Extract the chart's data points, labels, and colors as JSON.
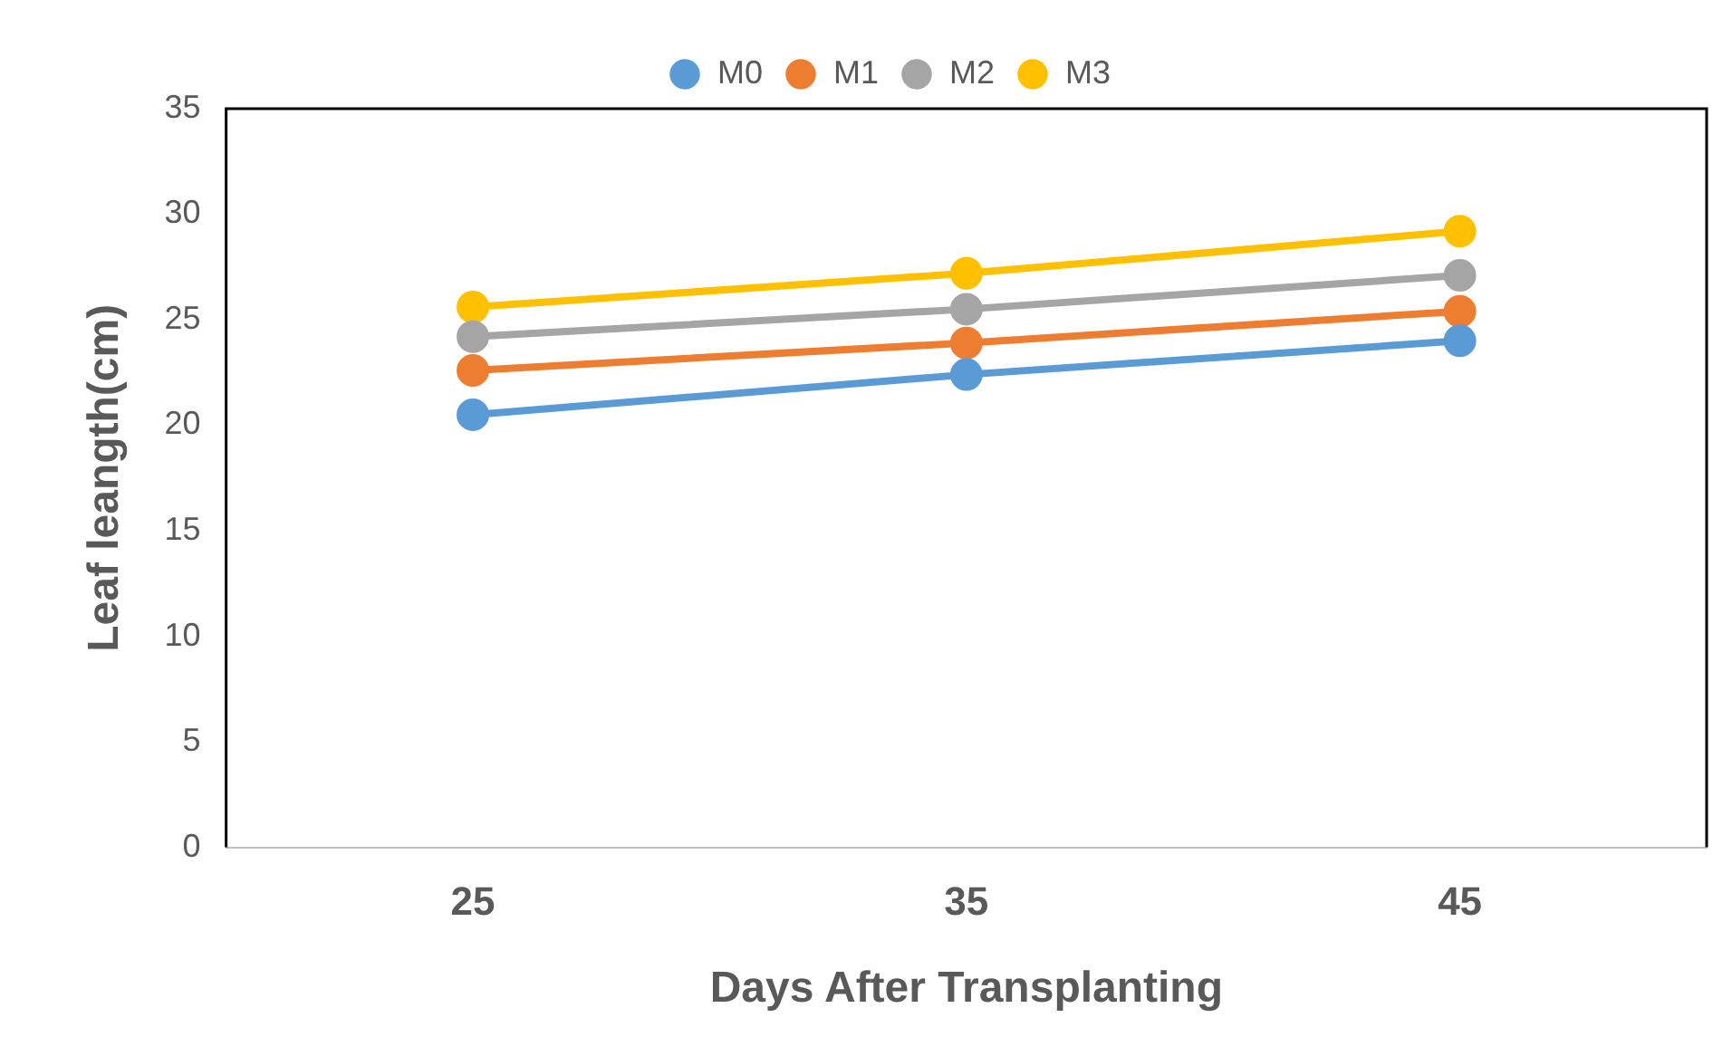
{
  "chart_data": {
    "type": "line",
    "xlabel": "Days After Transplanting",
    "ylabel": "Leaf leangth(cm)",
    "categories": [
      "25",
      "35",
      "45"
    ],
    "series": [
      {
        "name": "M0",
        "color": "#5b9bd5",
        "values": [
          20.5,
          22.4,
          24.0
        ]
      },
      {
        "name": "M1",
        "color": "#ed7d31",
        "values": [
          22.6,
          23.9,
          25.4
        ]
      },
      {
        "name": "M2",
        "color": "#a5a5a5",
        "values": [
          24.2,
          25.5,
          27.1
        ]
      },
      {
        "name": "M3",
        "color": "#ffc000",
        "values": [
          25.6,
          27.2,
          29.2
        ]
      }
    ],
    "ylim": [
      0,
      35
    ],
    "yticks": [
      0,
      5,
      10,
      15,
      20,
      25,
      30,
      35
    ],
    "grid": false,
    "legend": "top",
    "marker": "circle",
    "line_style": "solid"
  }
}
